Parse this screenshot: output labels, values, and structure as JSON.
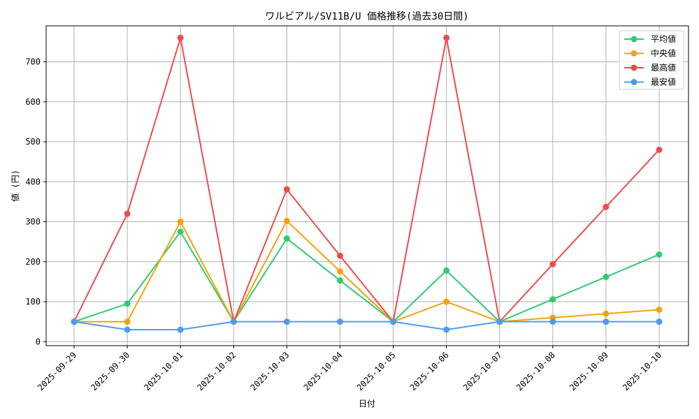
{
  "chart_data": {
    "type": "line",
    "title": "ワルビアル/SV11B/U 価格推移(過去30日間)",
    "xlabel": "日付",
    "ylabel": "値 (円)",
    "categories": [
      "2025-09-29",
      "2025-09-30",
      "2025-10-01",
      "2025-10-02",
      "2025-10-03",
      "2025-10-04",
      "2025-10-05",
      "2025-10-06",
      "2025-10-07",
      "2025-10-08",
      "2025-10-09",
      "2025-10-10"
    ],
    "ylim": [
      -10,
      790
    ],
    "yticks": [
      0,
      100,
      200,
      300,
      400,
      500,
      600,
      700
    ],
    "grid": true,
    "legend_position": "top-right",
    "series": [
      {
        "name": "平均値",
        "color": "#2ecc71",
        "values": [
          50,
          95,
          275,
          50,
          258,
          153,
          50,
          178,
          50,
          106,
          162,
          218
        ]
      },
      {
        "name": "中央値",
        "color": "#f5a20a",
        "values": [
          50,
          50,
          300,
          50,
          302,
          176,
          50,
          100,
          50,
          60,
          70,
          80
        ]
      },
      {
        "name": "最高値",
        "color": "#ef4b4b",
        "values": [
          50,
          320,
          760,
          50,
          381,
          215,
          50,
          760,
          50,
          194,
          337,
          480
        ]
      },
      {
        "name": "最安値",
        "color": "#4d9cf0",
        "values": [
          50,
          30,
          30,
          50,
          50,
          50,
          50,
          30,
          50,
          50,
          50,
          50
        ]
      }
    ]
  }
}
